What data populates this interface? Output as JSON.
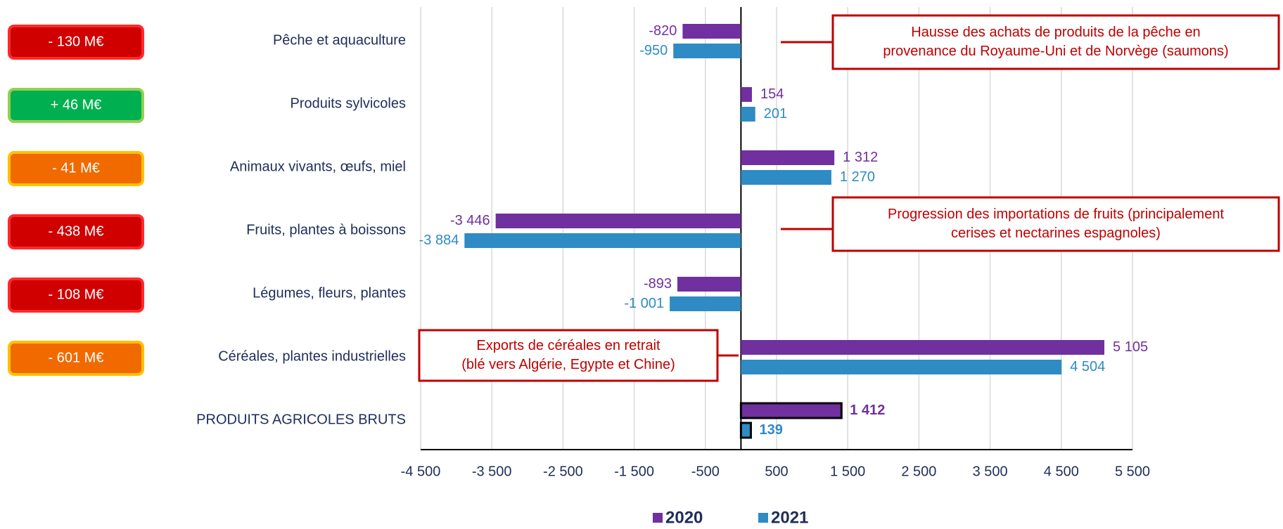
{
  "chart_data": {
    "type": "hbar",
    "categories": [
      "Pêche et aquaculture",
      "Produits sylvicoles",
      "Animaux vivants, œufs, miel",
      "Fruits, plantes à boissons",
      "Légumes, fleurs, plantes",
      "Céréales, plantes industrielles",
      "PRODUITS AGRICOLES BRUTS"
    ],
    "series": [
      {
        "name": "2020",
        "color": "#7030a0",
        "values": [
          -820,
          154,
          1312,
          -3446,
          -893,
          5105,
          1412
        ],
        "value_labels": [
          "-820",
          "154",
          "1 312",
          "-3 446",
          "-893",
          "5 105",
          "1 412"
        ]
      },
      {
        "name": "2021",
        "color": "#2e8bc4",
        "values": [
          -950,
          201,
          1270,
          -3884,
          -1001,
          4504,
          139
        ],
        "value_labels": [
          "-950",
          "201",
          "1 270",
          "-3 884",
          "-1 001",
          "4 504",
          "139"
        ]
      }
    ],
    "xlim": [
      -4500,
      5500
    ],
    "xticks": [
      {
        "value": -4500,
        "label": "-4 500"
      },
      {
        "value": -3500,
        "label": "-3 500"
      },
      {
        "value": -2500,
        "label": "-2 500"
      },
      {
        "value": -1500,
        "label": "-1 500"
      },
      -500,
      500,
      {
        "value": 1500,
        "label": "1 500"
      },
      {
        "value": 2500,
        "label": "2 500"
      },
      {
        "value": 3500,
        "label": "3 500"
      },
      {
        "value": 4500,
        "label": "4 500"
      },
      {
        "value": 5500,
        "label": "5 500"
      }
    ],
    "grid": true,
    "outline_last": true,
    "legend": "bottom",
    "badges": [
      {
        "text": "- 130 M€",
        "color": "#d00000",
        "border": "#ff2a2a"
      },
      {
        "text": "+ 46 M€",
        "color": "#00b050",
        "border": "#92d050"
      },
      {
        "text": "- 41 M€",
        "color": "#f06a00",
        "border": "#ffc000"
      },
      {
        "text": "- 438 M€",
        "color": "#d00000",
        "border": "#ff2a2a"
      },
      {
        "text": "- 108 M€",
        "color": "#d00000",
        "border": "#ff2a2a"
      },
      {
        "text": "- 601 M€",
        "color": "#f06a00",
        "border": "#ffc000"
      }
    ],
    "annotations": [
      {
        "lines": [
          "Hausse des achats de produits de la pêche en",
          "provenance du Royaume-Uni et de Norvège (saumons)"
        ]
      },
      {
        "lines": [
          "Progression des importations de fruits (principalement",
          "cerises et nectarines espagnoles)"
        ]
      },
      {
        "lines": [
          "Exports de céréales en retrait",
          "(blé vers Algérie, Egypte et Chine)"
        ]
      }
    ]
  }
}
